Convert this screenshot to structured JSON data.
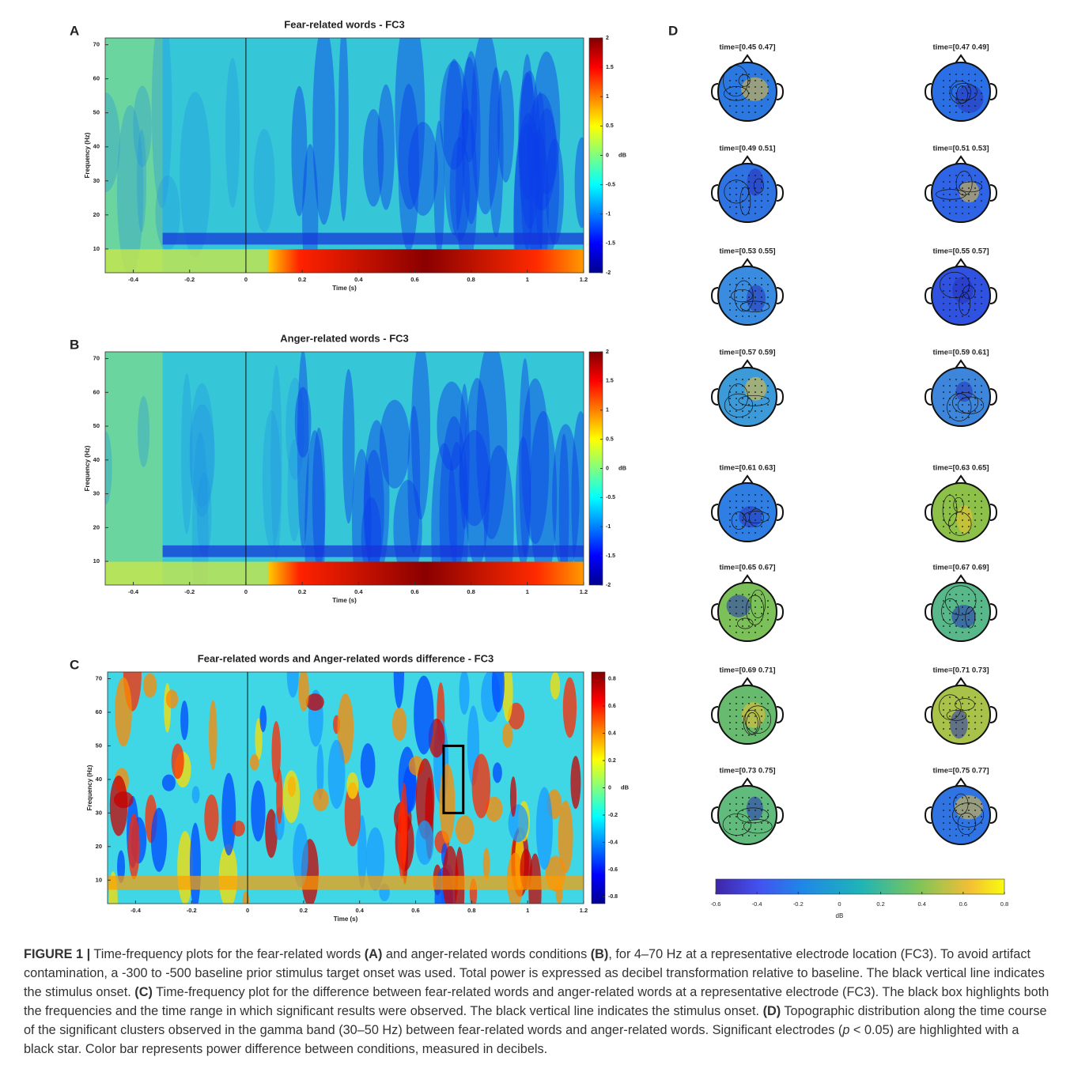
{
  "panels": [
    {
      "letter": "A",
      "title": "Fear-related words - FC3",
      "xlabel": "Time (s)",
      "ylabel": "Frequency (Hz)",
      "xlim": [
        -0.5,
        1.2
      ],
      "xticks": [
        -0.4,
        -0.2,
        0,
        0.2,
        0.4,
        0.6,
        0.8,
        1,
        1.2
      ],
      "ylim": [
        3,
        72
      ],
      "yticks": [
        10,
        20,
        30,
        40,
        50,
        60,
        70
      ],
      "clim": [
        -2,
        2
      ],
      "cticks": [
        -2,
        -1.5,
        -1,
        -0.5,
        0,
        0.5,
        1,
        1.5,
        2
      ],
      "cunit": "dB",
      "onset": 0,
      "colormap": "jet"
    },
    {
      "letter": "B",
      "title": "Anger-related words - FC3",
      "xlabel": "Time (s)",
      "ylabel": "Frequency (Hz)",
      "xlim": [
        -0.5,
        1.2
      ],
      "xticks": [
        -0.4,
        -0.2,
        0,
        0.2,
        0.4,
        0.6,
        0.8,
        1,
        1.2
      ],
      "ylim": [
        3,
        72
      ],
      "yticks": [
        10,
        20,
        30,
        40,
        50,
        60,
        70
      ],
      "clim": [
        -2,
        2
      ],
      "cticks": [
        -2,
        -1.5,
        -1,
        -0.5,
        0,
        0.5,
        1,
        1.5,
        2
      ],
      "cunit": "dB",
      "onset": 0,
      "colormap": "jet"
    },
    {
      "letter": "C",
      "title": "Fear-related words and Anger-related words difference - FC3",
      "xlabel": "Time (s)",
      "ylabel": "Frequency (Hz)",
      "xlim": [
        -0.5,
        1.2
      ],
      "xticks": [
        -0.4,
        -0.2,
        0,
        0.2,
        0.4,
        0.6,
        0.8,
        1,
        1.2
      ],
      "ylim": [
        3,
        72
      ],
      "yticks": [
        10,
        20,
        30,
        40,
        50,
        60,
        70
      ],
      "clim": [
        -0.85,
        0.85
      ],
      "cticks": [
        -0.8,
        -0.6,
        -0.4,
        -0.2,
        0,
        0.2,
        0.4,
        0.6,
        0.8
      ],
      "cunit": "dB",
      "onset": 0,
      "colormap": "jet",
      "box": {
        "xlim": [
          0.7,
          0.77
        ],
        "ylim": [
          30,
          50
        ]
      }
    }
  ],
  "topoplots": {
    "letter": "D",
    "times": [
      "time=[0.45 0.47]",
      "time=[0.47 0.49]",
      "time=[0.49 0.51]",
      "time=[0.51 0.53]",
      "time=[0.53 0.55]",
      "time=[0.55 0.57]",
      "time=[0.57 0.59]",
      "time=[0.59 0.61]",
      "time=[0.61 0.63]",
      "time=[0.63 0.65]",
      "time=[0.65 0.67]",
      "time=[0.67 0.69]",
      "time=[0.69 0.71]",
      "time=[0.71 0.73]",
      "time=[0.73 0.75]",
      "time=[0.75 0.77]"
    ],
    "clim": [
      -0.6,
      0.8
    ],
    "cticks": [
      -0.6,
      -0.4,
      -0.2,
      0,
      0.2,
      0.4,
      0.6,
      0.8
    ],
    "cunit": "dB",
    "colormap": "parula"
  },
  "caption": [
    {
      "text": "FIGURE 1 |",
      "style": "bold"
    },
    {
      "text": " Time-frequency plots for the fear-related words ",
      "style": "normal"
    },
    {
      "text": "(A)",
      "style": "bold"
    },
    {
      "text": " and anger-related words conditions ",
      "style": "normal"
    },
    {
      "text": "(B)",
      "style": "bold"
    },
    {
      "text": ", for 4–70 Hz at a representative electrode location (FC3). To avoid artifact contamination, a -300 to -500 baseline prior stimulus target onset was used. Total power is expressed as decibel transformation relative to baseline. The black vertical line indicates the stimulus onset. ",
      "style": "normal"
    },
    {
      "text": "(C)",
      "style": "bold"
    },
    {
      "text": " Time-frequency plot for the difference between fear-related words and anger-related words at a representative electrode (FC3). The black box highlights both the frequencies and the time range in which significant results were observed. The black vertical line indicates the stimulus onset. ",
      "style": "normal"
    },
    {
      "text": "(D)",
      "style": "bold"
    },
    {
      "text": " Topographic distribution along the time course of the significant clusters observed in the gamma band (30–50 Hz) between fear-related words and anger-related words. Significant electrodes (",
      "style": "normal"
    },
    {
      "text": "p",
      "style": "italic"
    },
    {
      "text": " < 0.05) are highlighted with a black star. Color bar represents power difference between conditions, measured in decibels.",
      "style": "normal"
    }
  ]
}
